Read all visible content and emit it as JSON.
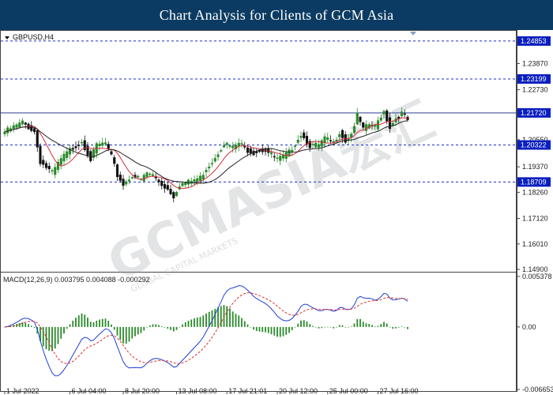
{
  "banner": {
    "title": "Chart Analysis for Clients of GCM Asia"
  },
  "watermark": {
    "main": "GCMASIA宏汇",
    "sub": "GLOBAL CAPITAL MARKETS"
  },
  "chart_data": {
    "type": "candlestick",
    "symbol": "GBPUSD,H4",
    "price_axis": {
      "range": [
        1.149,
        1.2485
      ],
      "ticks": [
        "1.23870",
        "1.22730",
        "1.21720",
        "1.20550",
        "1.19370",
        "1.18260",
        "1.17120",
        "1.16010",
        "1.14900"
      ]
    },
    "levels": [
      {
        "label": "1.24853",
        "value": 1.24853
      },
      {
        "label": "1.23199",
        "value": 1.23199
      },
      {
        "label": "1.21720",
        "value": 1.2172
      },
      {
        "label": "1.20322",
        "value": 1.20322
      },
      {
        "label": "1.18709",
        "value": 1.18709
      }
    ],
    "x_labels": [
      "1 Jul 2022",
      "6 Jul 04:00",
      "8 Jul 20:00",
      "13 Jul 08:00",
      "17 Jul 21:01",
      "20 Jul 12:00",
      "25 Jul 00:00",
      "27 Jul 16:00"
    ],
    "x_label_index": [
      0,
      22,
      40,
      58,
      75,
      92,
      109,
      126
    ],
    "close_anchors": [
      [
        0,
        1.209
      ],
      [
        6,
        1.213
      ],
      [
        10,
        1.209
      ],
      [
        12,
        1.196
      ],
      [
        16,
        1.191
      ],
      [
        19,
        1.197
      ],
      [
        22,
        1.201
      ],
      [
        26,
        1.205
      ],
      [
        29,
        1.197
      ],
      [
        31,
        1.203
      ],
      [
        34,
        1.204
      ],
      [
        36,
        1.198
      ],
      [
        38,
        1.19
      ],
      [
        40,
        1.186
      ],
      [
        43,
        1.19
      ],
      [
        46,
        1.188
      ],
      [
        48,
        1.191
      ],
      [
        50,
        1.19
      ],
      [
        53,
        1.186
      ],
      [
        55,
        1.184
      ],
      [
        57,
        1.181
      ],
      [
        59,
        1.186
      ],
      [
        62,
        1.187
      ],
      [
        64,
        1.188
      ],
      [
        66,
        1.189
      ],
      [
        68,
        1.193
      ],
      [
        70,
        1.196
      ],
      [
        72,
        1.2
      ],
      [
        74,
        1.204
      ],
      [
        77,
        1.202
      ],
      [
        79,
        1.204
      ],
      [
        82,
        1.201
      ],
      [
        84,
        1.2
      ],
      [
        86,
        1.201
      ],
      [
        88,
        1.201
      ],
      [
        90,
        1.199
      ],
      [
        92,
        1.197
      ],
      [
        94,
        1.198
      ],
      [
        96,
        1.2
      ],
      [
        98,
        1.204
      ],
      [
        100,
        1.208
      ],
      [
        103,
        1.203
      ],
      [
        106,
        1.203
      ],
      [
        108,
        1.206
      ],
      [
        111,
        1.204
      ],
      [
        113,
        1.209
      ],
      [
        115,
        1.205
      ],
      [
        117,
        1.208
      ],
      [
        119,
        1.216
      ],
      [
        121,
        1.21
      ],
      [
        123,
        1.212
      ],
      [
        125,
        1.211
      ],
      [
        127,
        1.216
      ],
      [
        128,
        1.218
      ],
      [
        130,
        1.211
      ],
      [
        132,
        1.215
      ],
      [
        134,
        1.217
      ],
      [
        136,
        1.214
      ]
    ],
    "moving_averages": [
      {
        "color": "#d12f3f",
        "period": 8
      },
      {
        "color": "#222222",
        "period": 18
      }
    ],
    "macd": {
      "label": "MACD(12,26,9) 0.003795 0.004088 -0.000292",
      "range": [
        -0.00665,
        0.00537
      ],
      "ticks": [
        "0.005378",
        "0.00",
        "-0.006653"
      ],
      "histogram_color": "#2a8a2a",
      "signal_color": "#e03030",
      "main_color": "#1f3fd6"
    },
    "bullish_color": "#2a8a2a",
    "bearish_color": "#111111"
  }
}
